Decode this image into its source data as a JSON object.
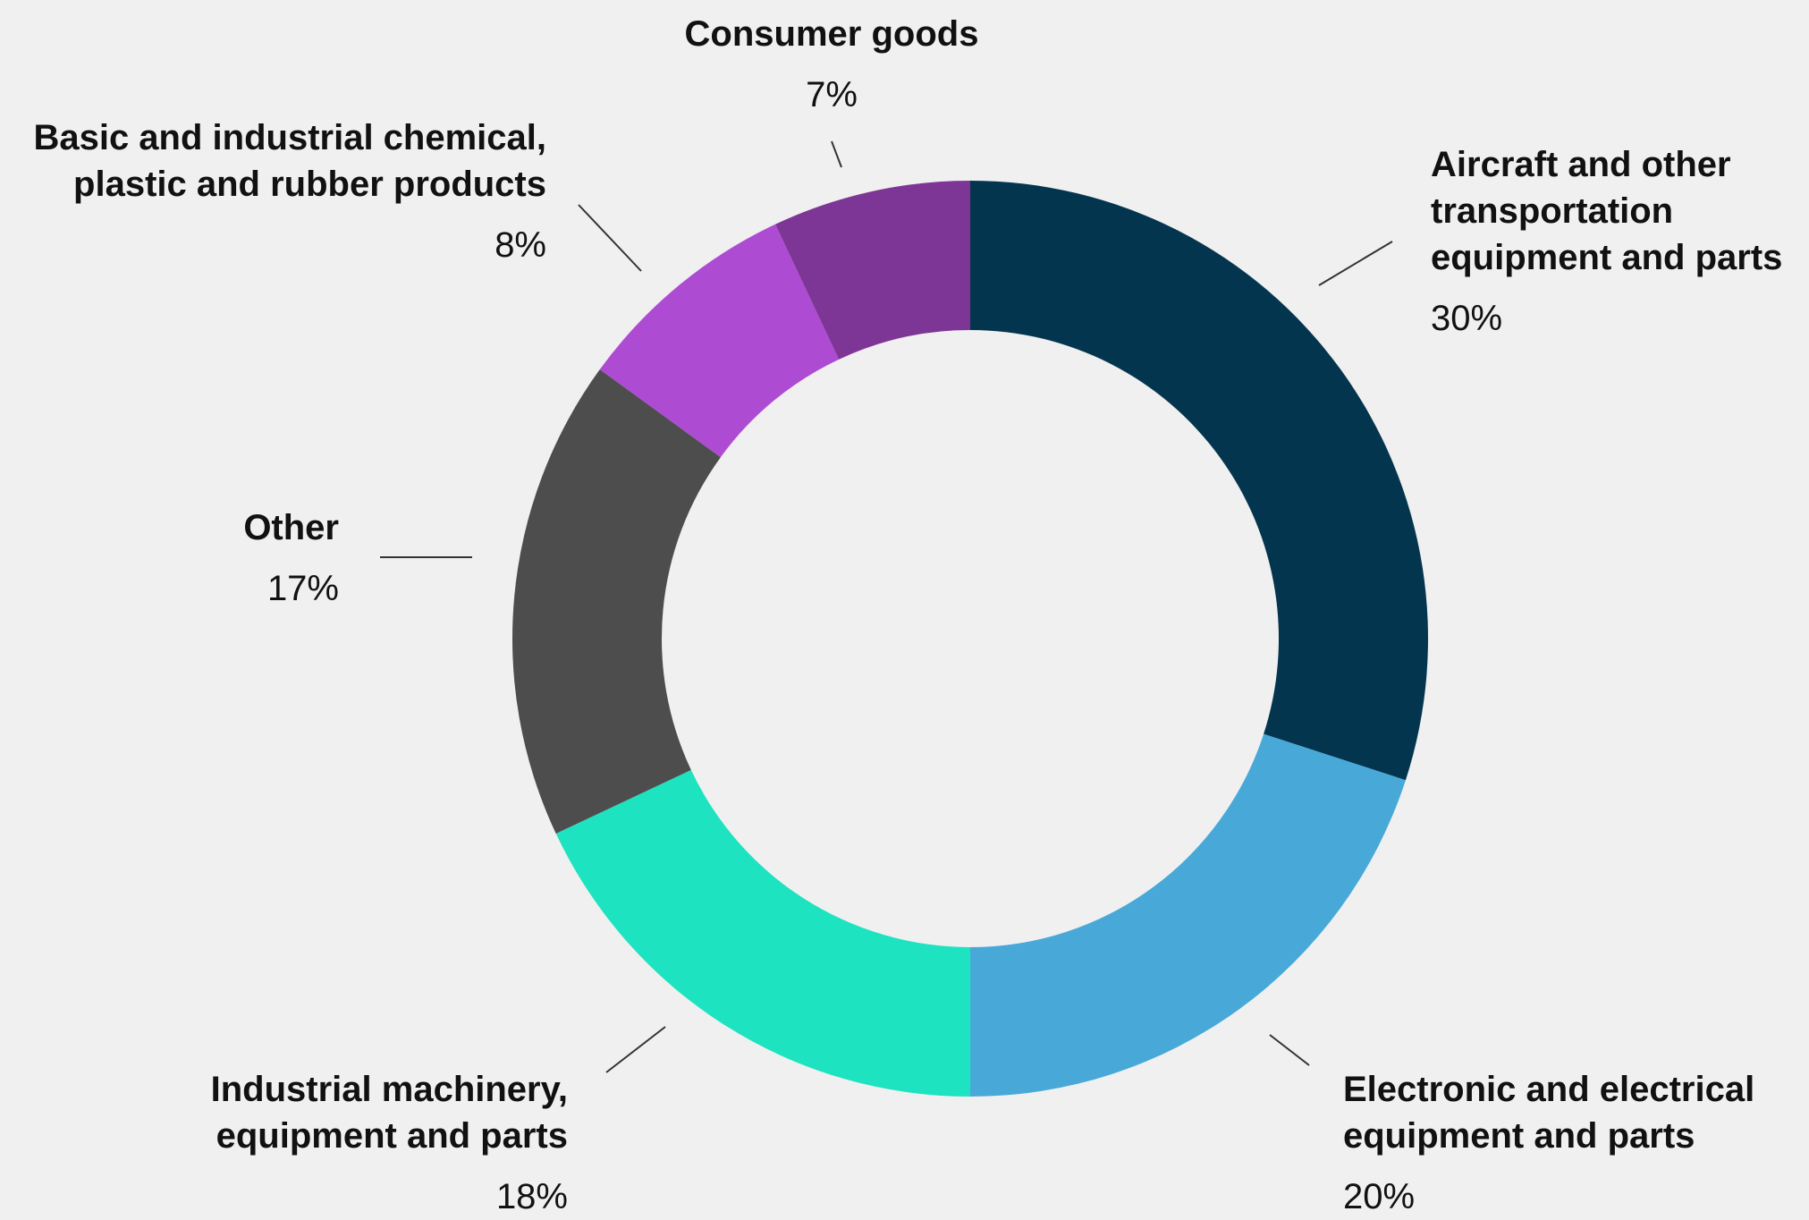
{
  "chart_data": {
    "type": "pie",
    "variant": "donut",
    "title": "",
    "slices": [
      {
        "label_lines": [
          "Aircraft and other",
          "transportation",
          "equipment and parts"
        ],
        "value": 30,
        "pct_label": "30%",
        "color": "#04354f"
      },
      {
        "label_lines": [
          "Electronic and electrical",
          "equipment and parts"
        ],
        "value": 20,
        "pct_label": "20%",
        "color": "#48a9d9"
      },
      {
        "label_lines": [
          "Industrial machinery,",
          "equipment and parts"
        ],
        "value": 18,
        "pct_label": "18%",
        "color": "#1ee3c0"
      },
      {
        "label_lines": [
          "Other"
        ],
        "value": 17,
        "pct_label": "17%",
        "color": "#4d4d4d"
      },
      {
        "label_lines": [
          "Basic and industrial chemical,",
          "plastic and rubber products"
        ],
        "value": 8,
        "pct_label": "8%",
        "color": "#ae4bd3"
      },
      {
        "label_lines": [
          "Consumer goods"
        ],
        "value": 7,
        "pct_label": "7%",
        "color": "#7e3696"
      }
    ]
  }
}
